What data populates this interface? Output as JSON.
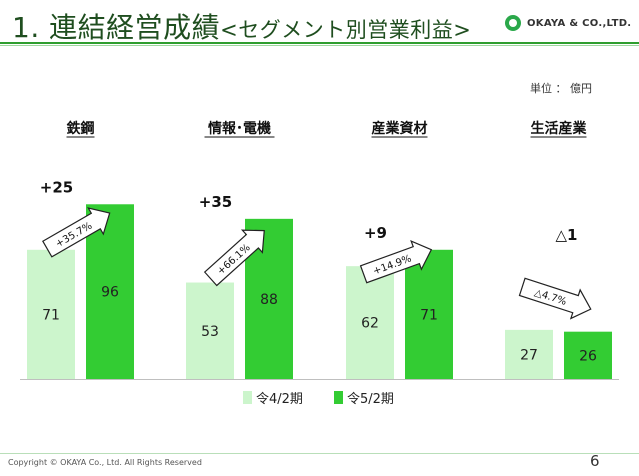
{
  "header": {
    "title": "1. 連結経営成績",
    "subtitle": "<セグメント別営業利益>",
    "company": "OKAYA & CO.,LTD."
  },
  "unit_label": "単位 ： 億円",
  "chart_data": {
    "type": "bar",
    "categories": [
      "鉄鋼",
      "情報･電機",
      "産業資材",
      "生活産業"
    ],
    "series": [
      {
        "name": "令4/2期",
        "values": [
          71,
          53,
          62,
          27
        ],
        "color": "#ccf5cc"
      },
      {
        "name": "令5/2期",
        "values": [
          96,
          88,
          71,
          26
        ],
        "color": "#33cc33"
      }
    ],
    "changes": [
      "+25",
      "+35",
      "+9",
      "△1"
    ],
    "change_rates": [
      "+35.7%",
      "+66.1%",
      "+14.9%",
      "△4.7%"
    ],
    "title": "",
    "xlabel": "",
    "ylabel": "",
    "ylim": [
      0,
      100
    ],
    "legend": "bottom",
    "grid": false
  },
  "footer": {
    "copyright": "Copyright © OKAYA Co., Ltd. All Rights Reserved",
    "page": "6"
  }
}
